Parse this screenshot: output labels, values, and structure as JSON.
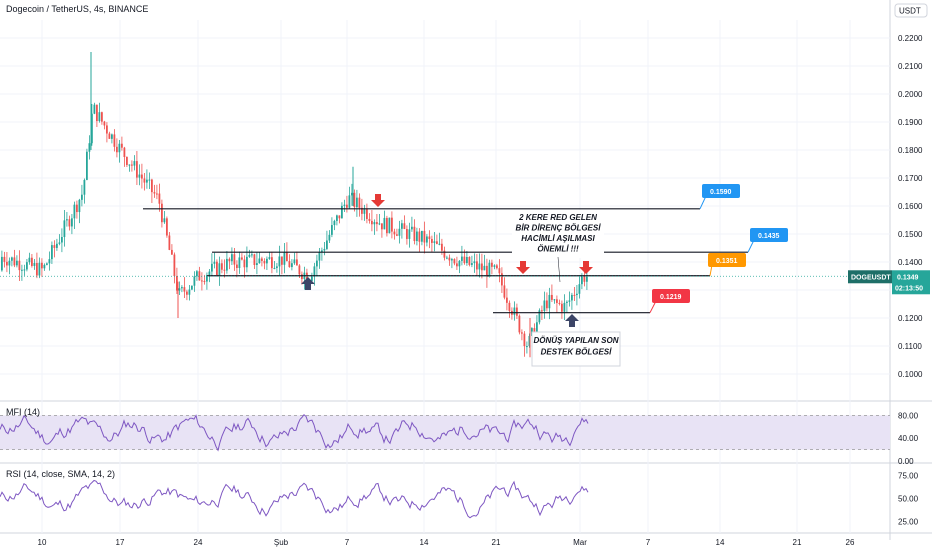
{
  "header": {
    "title": "Dogecoin / TetherUS, 4s, BINANCE",
    "currency": "USDT"
  },
  "main_pane": {
    "price_ticks": [
      "0.2200",
      "0.2100",
      "0.2000",
      "0.1900",
      "0.1800",
      "0.1700",
      "0.1600",
      "0.1500",
      "0.1400",
      "0.1300",
      "0.1200",
      "0.1100",
      "0.1000"
    ],
    "symbol_tag": "DOGEUSDT",
    "last_price": "0.1349",
    "countdown": "02:13:50",
    "level_labels": [
      "0.1590",
      "0.1435",
      "0.1351",
      "0.1219"
    ],
    "annotation_resistance": [
      "2 KERE RED GELEN",
      "BİR DİRENÇ BÖLGESİ",
      "HACİMLİ AŞILMASI",
      "ÖNEMLİ !!!"
    ],
    "annotation_support": [
      "DÖNÜŞ YAPILAN SON",
      "DESTEK BÖLGESİ"
    ]
  },
  "mfi_pane": {
    "title": "MFI (14)",
    "ticks": [
      "80.00",
      "40.00",
      "0.00"
    ]
  },
  "rsi_pane": {
    "title": "RSI (14, close, SMA, 14, 2)",
    "ticks": [
      "75.00",
      "50.00",
      "25.00"
    ]
  },
  "x_axis": {
    "labels": [
      "10",
      "17",
      "24",
      "Şub",
      "7",
      "14",
      "21",
      "Mar",
      "7",
      "14",
      "21",
      "26"
    ]
  },
  "colors": {
    "up": "#26a69a",
    "down": "#ef5350",
    "oscillator": "#7e57c2",
    "band_fill": "#e8e3f5",
    "label_blue": "#2196f3",
    "label_orange": "#ff9800",
    "label_red": "#f23645",
    "arrow_red": "#e53935",
    "arrow_navy": "#3c4567"
  },
  "chart_data": [
    {
      "type": "candlestick",
      "title": "Dogecoin / TetherUS, 4s, BINANCE",
      "price_range": [
        0.095,
        0.227
      ],
      "x_tick_labels": [
        "10",
        "17",
        "24",
        "Şub",
        "7",
        "14",
        "21",
        "Mar",
        "7",
        "14",
        "21",
        "26"
      ],
      "price_path_approx": [
        {
          "x": "10",
          "price": 0.137
        },
        {
          "x": "14",
          "price": 0.165
        },
        {
          "x": "15",
          "price": 0.195
        },
        {
          "x": "17",
          "price": 0.18
        },
        {
          "x": "21",
          "price": 0.162
        },
        {
          "x": "23",
          "price": 0.128
        },
        {
          "x": "24",
          "price": 0.135
        },
        {
          "x": "27",
          "price": 0.14
        },
        {
          "x": "Şub",
          "price": 0.141
        },
        {
          "x": "3",
          "price": 0.135
        },
        {
          "x": "7",
          "price": 0.163
        },
        {
          "x": "10",
          "price": 0.154
        },
        {
          "x": "14",
          "price": 0.148
        },
        {
          "x": "18",
          "price": 0.14
        },
        {
          "x": "21",
          "price": 0.136
        },
        {
          "x": "24",
          "price": 0.11
        },
        {
          "x": "26",
          "price": 0.126
        },
        {
          "x": "28",
          "price": 0.124
        },
        {
          "x": "Mar",
          "price": 0.1349
        }
      ],
      "horizontal_levels": [
        0.159,
        0.1435,
        0.1351,
        0.1219
      ],
      "last_price": 0.1349,
      "annotations": [
        "2 KERE RED GELEN BİR DİRENÇ BÖLGESİ HACİMLİ AŞILMASI ÖNEMLİ !!!",
        "DÖNÜŞ YAPILAN SON DESTEK BÖLGESİ"
      ]
    },
    {
      "type": "line",
      "title": "MFI (14)",
      "ylim": [
        0,
        100
      ],
      "yticks": [
        80,
        40,
        0
      ],
      "band": [
        20,
        80
      ],
      "last_value": 75
    },
    {
      "type": "line",
      "title": "RSI (14, close, SMA, 14, 2)",
      "ylim": [
        15,
        85
      ],
      "yticks": [
        75,
        50,
        25
      ],
      "last_value": 64
    }
  ]
}
